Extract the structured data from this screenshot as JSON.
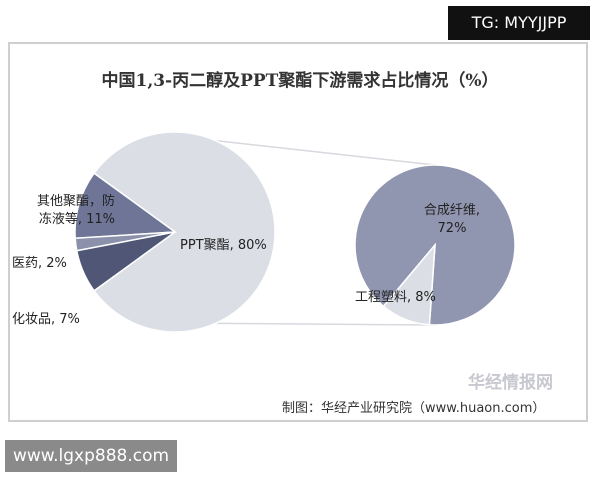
{
  "chart_data": {
    "type": "pie-of-pie",
    "title": "中国1,3-丙二醇及PPT聚酯下游需求占比情况（%）",
    "labels": [
      "PPT聚酯, 80%",
      "其他聚酯，防\n冻液等, 11%",
      "医药, 2%",
      "化妆品, 7%"
    ],
    "values": [
      80,
      11,
      2,
      7
    ],
    "colors": [
      "#dcdee6",
      "#6e7596",
      "#8b91ab",
      "#505776"
    ],
    "sub_pie": {
      "labels": [
        "合成纤维,\n72%",
        "工程塑料, 8%"
      ],
      "values": [
        72,
        8
      ],
      "colors": [
        "#9096b0",
        "#dcdee6"
      ]
    },
    "source": "制图：华经产业研究院（www.huaon.com）",
    "logo": "华经情报网",
    "watermarks": [
      "TG: MYYJJPP",
      "www.lgxp888.com"
    ]
  }
}
